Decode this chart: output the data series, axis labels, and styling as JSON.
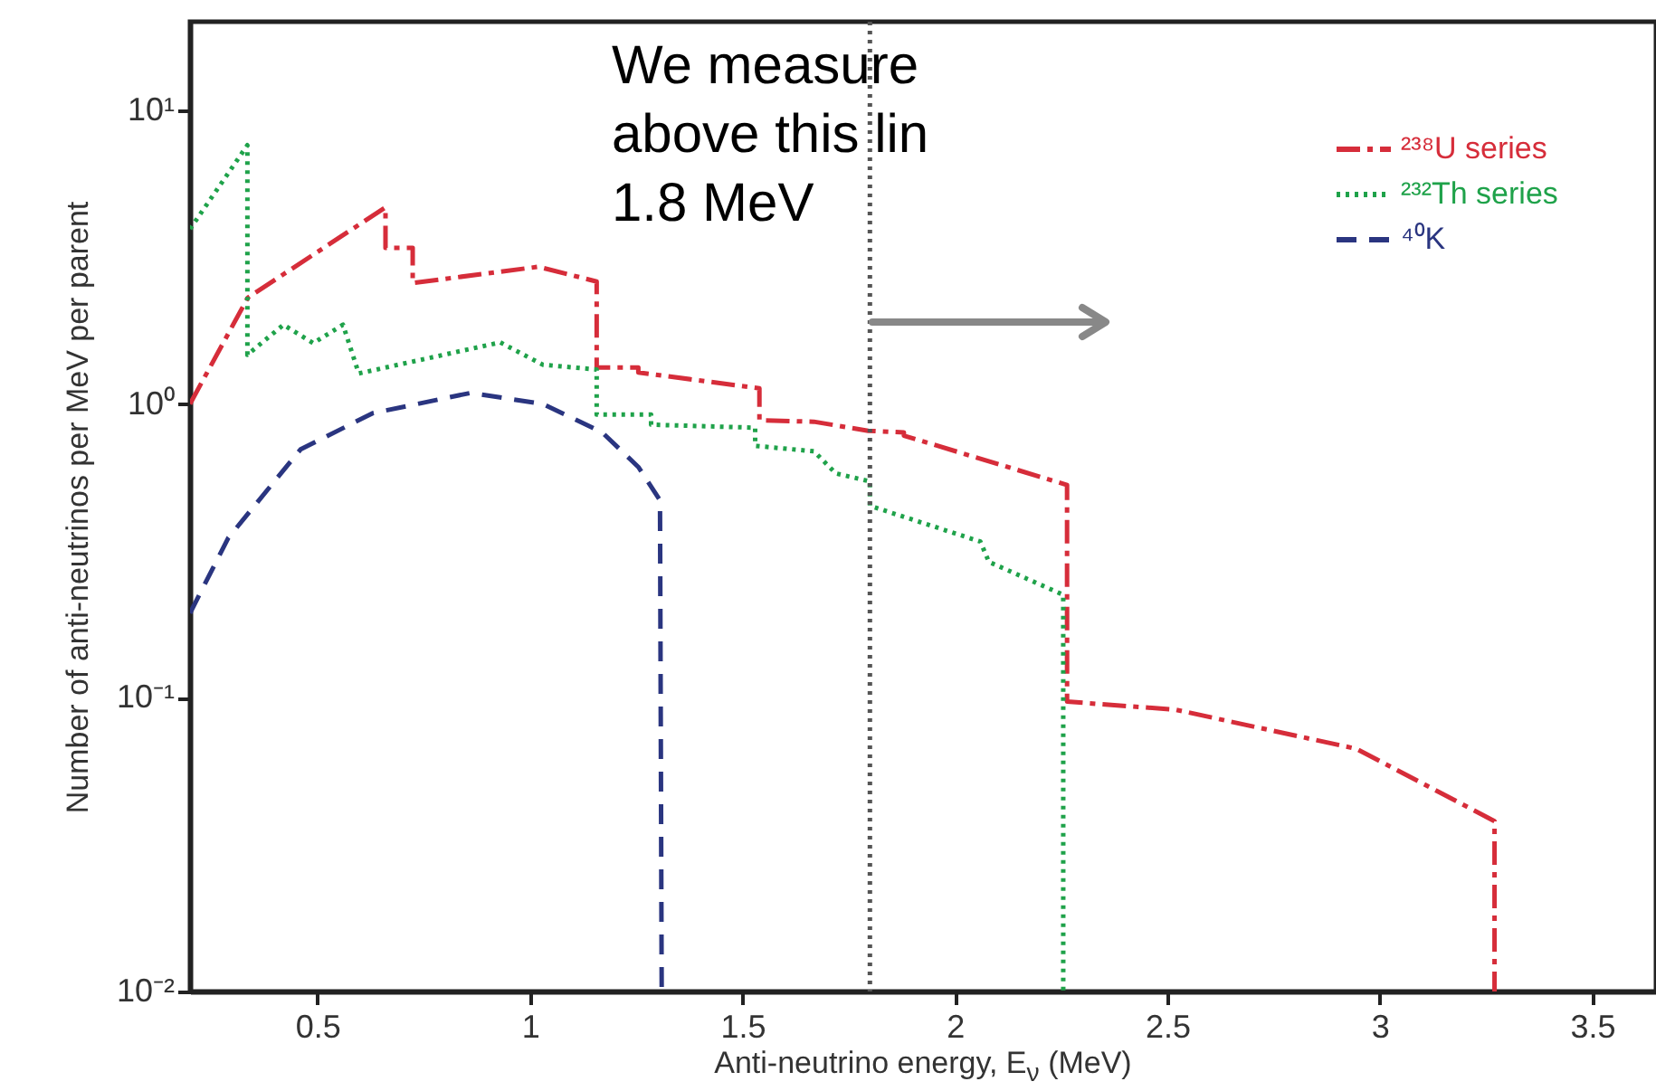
{
  "chart_data": {
    "type": "line",
    "xlabel": "Anti-neutrino energy, E$_{ν}$ (MeV)",
    "ylabel": "Number of anti-neutrinos per MeV per parent",
    "annotations": [
      "We measure\nabove this lin\n1.8 MeV"
    ],
    "log": "y",
    "grid": false,
    "legend": "top right",
    "xlim": [
      0.2,
      3.65
    ],
    "xticks": [
      0.5,
      1,
      1.5,
      2,
      2.5,
      3,
      3.5
    ],
    "ylim": [
      0.01,
      20
    ],
    "yticks": [
      {
        "value": 0.01,
        "label": "10⁻²"
      },
      {
        "value": 0.1,
        "label": "10⁻¹"
      },
      {
        "value": 1,
        "label": "10⁰"
      },
      {
        "value": 10,
        "label": "10¹"
      }
    ],
    "ref_lines": [
      {
        "axis": "x",
        "value": 1.8,
        "color": "#555555",
        "line_style": "dotted"
      }
    ],
    "series": [
      {
        "name": "²³⁸U series",
        "color": "#d62d3a",
        "line_style": "dashdot",
        "x": [
          0.2,
          0.336,
          0.66,
          0.66,
          0.724,
          0.724,
          1.02,
          1.157,
          1.157,
          1.255,
          1.255,
          1.54,
          1.54,
          1.668,
          1.796,
          1.88,
          1.88,
          2.264,
          2.264,
          2.52,
          2.945,
          3.27,
          3.27
        ],
        "values": [
          1.0,
          2.3,
          4.67,
          3.4,
          3.4,
          2.58,
          2.93,
          2.61,
          1.33,
          1.33,
          1.28,
          1.13,
          0.88,
          0.87,
          0.81,
          0.8,
          0.78,
          0.53,
          0.097,
          0.091,
          0.067,
          0.038,
          0.01
        ]
      },
      {
        "name": "²³²Th series",
        "color": "#1fa24a",
        "line_style": "dotted",
        "x": [
          0.2,
          0.335,
          0.335,
          0.42,
          0.49,
          0.56,
          0.597,
          0.93,
          1.03,
          1.157,
          1.157,
          1.285,
          1.285,
          1.53,
          1.53,
          1.668,
          1.72,
          1.8,
          1.8,
          2.06,
          2.08,
          2.255,
          2.255
        ],
        "values": [
          3.94,
          7.6,
          1.47,
          1.86,
          1.61,
          1.86,
          1.27,
          1.62,
          1.36,
          1.31,
          0.92,
          0.92,
          0.85,
          0.83,
          0.72,
          0.69,
          0.58,
          0.545,
          0.45,
          0.34,
          0.29,
          0.224,
          0.01
        ]
      },
      {
        "name": "⁴⁰K",
        "color": "#2a3580",
        "line_style": "dashed",
        "x": [
          0.2,
          0.29,
          0.46,
          0.63,
          0.86,
          1.03,
          1.17,
          1.255,
          1.306,
          1.31
        ],
        "values": [
          0.194,
          0.35,
          0.7,
          0.93,
          1.09,
          1.0,
          0.8,
          0.61,
          0.47,
          0.01
        ]
      }
    ]
  }
}
